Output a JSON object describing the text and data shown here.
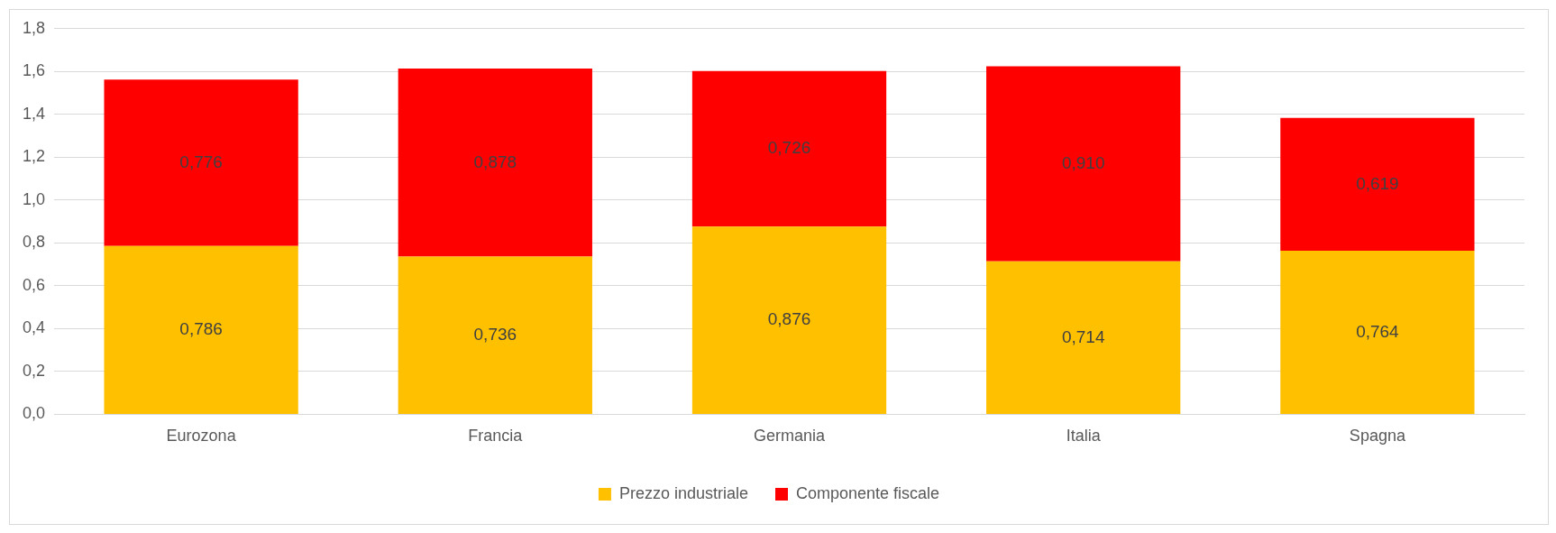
{
  "chart_data": {
    "type": "bar",
    "stacked": true,
    "categories": [
      "Eurozona",
      "Francia",
      "Germania",
      "Italia",
      "Spagna"
    ],
    "series": [
      {
        "name": "Prezzo industriale",
        "color": "#ffc000",
        "values": [
          0.786,
          0.736,
          0.876,
          0.714,
          0.764
        ],
        "value_labels": [
          "0,786",
          "0,736",
          "0,876",
          "0,714",
          "0,764"
        ]
      },
      {
        "name": "Componente fiscale",
        "color": "#ff0000",
        "values": [
          0.776,
          0.878,
          0.726,
          0.91,
          0.619
        ],
        "value_labels": [
          "0,776",
          "0,878",
          "0,726",
          "0,910",
          "0,619"
        ]
      }
    ],
    "ylim": [
      0,
      1.8
    ],
    "yticks": [
      {
        "value": 0,
        "label": "0,0"
      },
      {
        "value": 0.2,
        "label": "0,2"
      },
      {
        "value": 0.4,
        "label": "0,4"
      },
      {
        "value": 0.6,
        "label": "0,6"
      },
      {
        "value": 0.8,
        "label": "0,8"
      },
      {
        "value": 1.0,
        "label": "1,0"
      },
      {
        "value": 1.2,
        "label": "1,2"
      },
      {
        "value": 1.4,
        "label": "1,4"
      },
      {
        "value": 1.6,
        "label": "1,6"
      },
      {
        "value": 1.8,
        "label": "1,8"
      }
    ],
    "grid": "y",
    "legend": "bottom"
  }
}
